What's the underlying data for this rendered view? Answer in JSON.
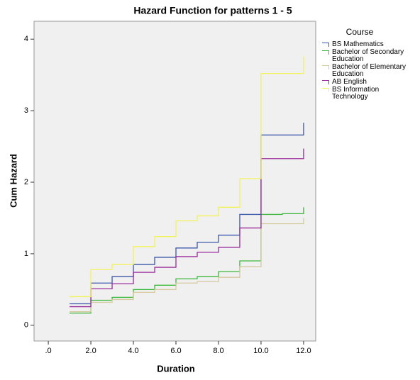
{
  "chart_data": {
    "type": "step",
    "title": "Hazard Function for patterns 1 - 5",
    "x_label": "Duration",
    "y_label": "Cum Hazard",
    "legend_title": "Course",
    "x": [
      1,
      2,
      3,
      4,
      5,
      6,
      7,
      8,
      9,
      10,
      11,
      12
    ],
    "series": [
      {
        "name": "BS Mathematics",
        "color": "#3e58ac",
        "values": [
          0.3,
          0.59,
          0.68,
          0.85,
          0.95,
          1.08,
          1.16,
          1.26,
          1.55,
          2.66,
          2.66,
          2.83
        ]
      },
      {
        "name": "Bachelor of Secondary Education",
        "color": "#3cb83c",
        "values": [
          0.17,
          0.35,
          0.39,
          0.5,
          0.56,
          0.65,
          0.68,
          0.75,
          0.9,
          1.55,
          1.56,
          1.65
        ]
      },
      {
        "name": "Bachelor of Elementary Education",
        "color": "#d6caa0",
        "values": [
          0.19,
          0.32,
          0.36,
          0.46,
          0.5,
          0.59,
          0.61,
          0.67,
          0.82,
          1.42,
          1.42,
          1.5
        ]
      },
      {
        "name": "AB English",
        "color": "#9b2d9b",
        "values": [
          0.26,
          0.51,
          0.58,
          0.74,
          0.81,
          0.96,
          1.02,
          1.09,
          1.36,
          2.33,
          2.33,
          2.47
        ]
      },
      {
        "name": "BS Information Technology",
        "color": "#f2f25a",
        "values": [
          0.4,
          0.78,
          0.85,
          1.1,
          1.24,
          1.46,
          1.53,
          1.65,
          2.05,
          3.52,
          3.52,
          3.76
        ]
      }
    ],
    "xlim": [
      -0.67,
      12.57
    ],
    "xticks": [
      {
        "value": 0,
        "label": ".0"
      },
      {
        "value": 2,
        "label": "2.0"
      },
      {
        "value": 4,
        "label": "4.0"
      },
      {
        "value": 6,
        "label": "6.0"
      },
      {
        "value": 8,
        "label": "8.0"
      },
      {
        "value": 10,
        "label": "10.0"
      },
      {
        "value": 12,
        "label": "12.0"
      }
    ],
    "ylim": [
      -0.22,
      4.25
    ],
    "yticks": [
      0,
      1,
      2,
      3,
      4
    ],
    "grid": false,
    "legend": "right"
  }
}
